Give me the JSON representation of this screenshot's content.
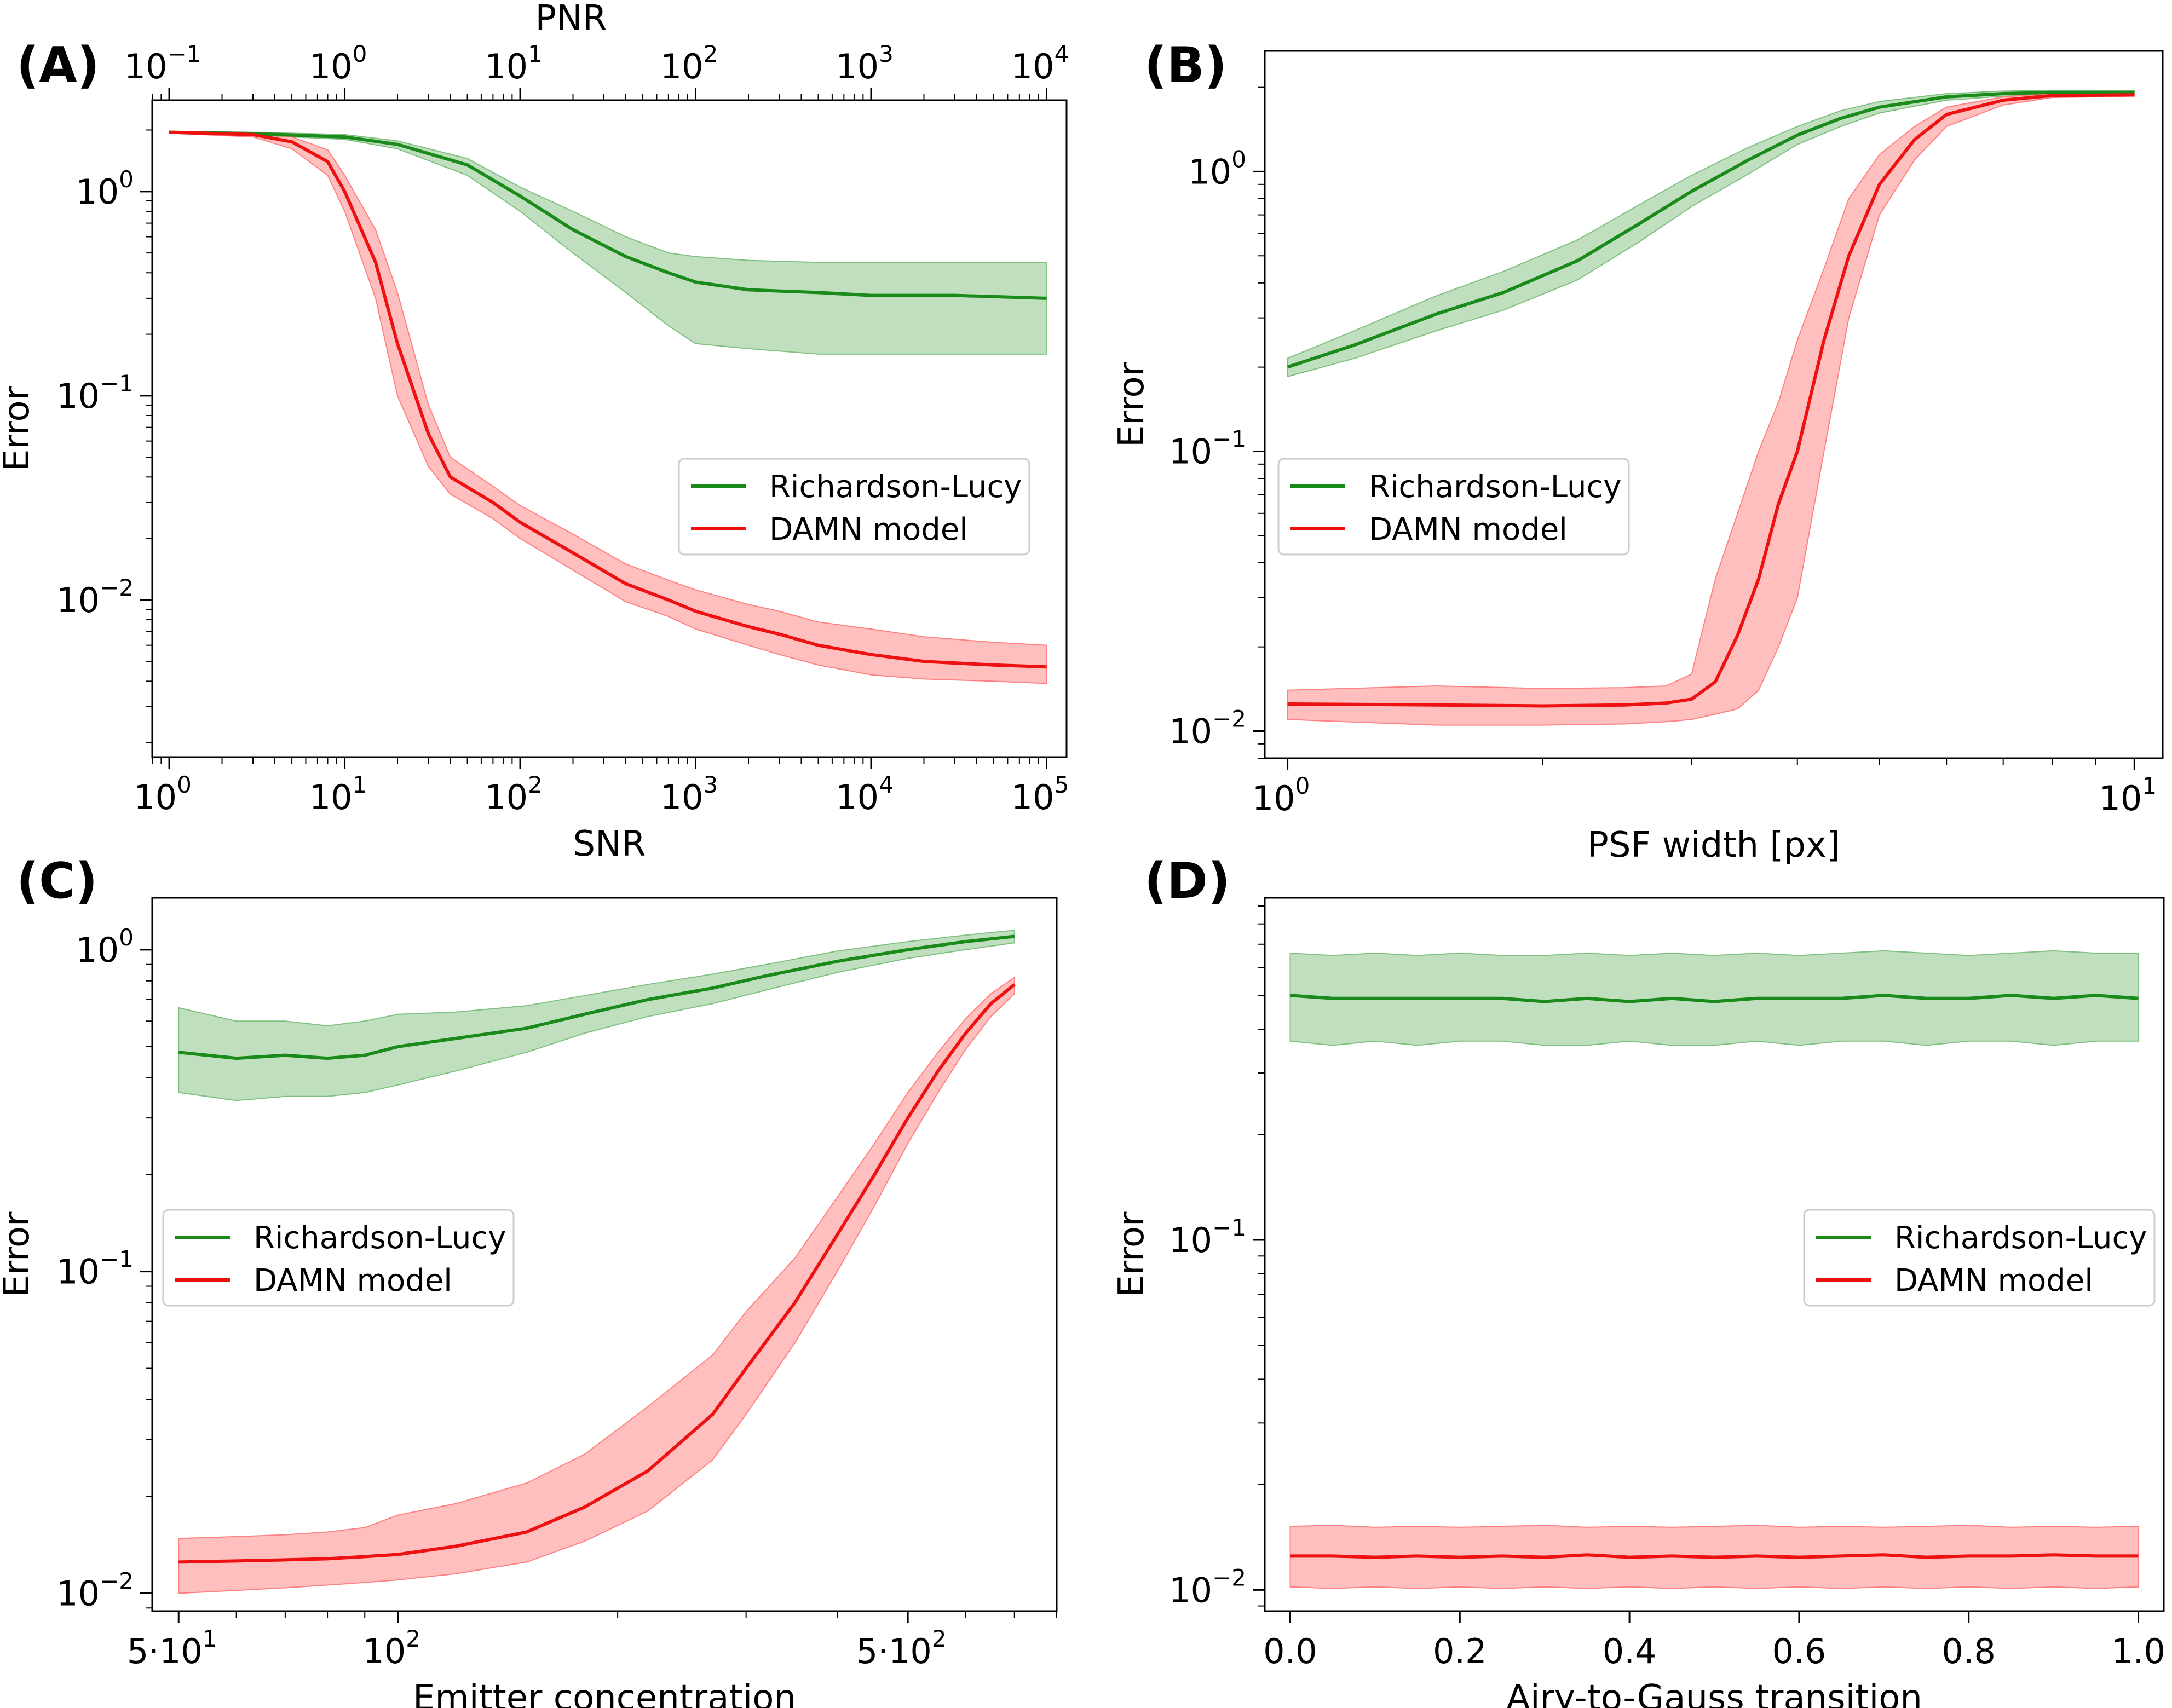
{
  "colors": {
    "richardson_lucy": "#1a8a1a",
    "damn_model": "#ee1111",
    "rl_band": "#7fc07f",
    "damn_band": "#ff8080"
  },
  "chart_data": [
    {
      "panel_label": "(A)",
      "type": "line",
      "xlabel": "SNR",
      "ylabel": "Error",
      "top_xlabel": "PNR",
      "xscale": "log",
      "yscale": "log",
      "xlim": [
        0.8,
        130000
      ],
      "ylim": [
        0.0017,
        2.8
      ],
      "top_xlim": [
        0.08,
        13000
      ],
      "x_ticks": [
        1,
        10,
        100,
        1000,
        10000,
        100000
      ],
      "x_tick_labels": [
        [
          "10",
          "0"
        ],
        [
          "10",
          "1"
        ],
        [
          "10",
          "2"
        ],
        [
          "10",
          "3"
        ],
        [
          "10",
          "4"
        ],
        [
          "10",
          "5"
        ]
      ],
      "top_x_ticks": [
        0.1,
        1,
        10,
        100,
        1000,
        10000
      ],
      "top_x_tick_labels": [
        [
          "10",
          "−1"
        ],
        [
          "10",
          "0"
        ],
        [
          "10",
          "1"
        ],
        [
          "10",
          "2"
        ],
        [
          "10",
          "3"
        ],
        [
          "10",
          "4"
        ]
      ],
      "y_ticks": [
        0.01,
        0.1,
        1
      ],
      "y_tick_labels": [
        [
          "10",
          "−2"
        ],
        [
          "10",
          "−1"
        ],
        [
          "10",
          "0"
        ]
      ],
      "legend_position": "center-right",
      "grid": false,
      "series": [
        {
          "name": "Richardson-Lucy",
          "color_key": "richardson_lucy",
          "x": [
            1,
            3,
            10,
            20,
            50,
            100,
            200,
            400,
            700,
            1000,
            2000,
            5000,
            10000,
            30000,
            100000
          ],
          "y": [
            1.95,
            1.92,
            1.85,
            1.7,
            1.35,
            0.95,
            0.65,
            0.48,
            0.4,
            0.36,
            0.33,
            0.32,
            0.31,
            0.31,
            0.3
          ],
          "lower": [
            1.93,
            1.89,
            1.8,
            1.62,
            1.2,
            0.8,
            0.5,
            0.32,
            0.22,
            0.18,
            0.17,
            0.16,
            0.16,
            0.16,
            0.16
          ],
          "upper": [
            1.97,
            1.95,
            1.9,
            1.77,
            1.45,
            1.05,
            0.8,
            0.6,
            0.5,
            0.48,
            0.46,
            0.45,
            0.45,
            0.45,
            0.45
          ]
        },
        {
          "name": "DAMN model",
          "color_key": "damn_model",
          "x": [
            1,
            3,
            5,
            8,
            10,
            15,
            20,
            30,
            40,
            70,
            100,
            200,
            400,
            700,
            1000,
            2000,
            3000,
            5000,
            10000,
            20000,
            50000,
            100000
          ],
          "y": [
            1.95,
            1.9,
            1.75,
            1.4,
            1.0,
            0.45,
            0.18,
            0.065,
            0.04,
            0.03,
            0.024,
            0.017,
            0.012,
            0.01,
            0.0088,
            0.0074,
            0.0068,
            0.006,
            0.0054,
            0.005,
            0.0048,
            0.0047
          ],
          "lower": [
            1.93,
            1.85,
            1.62,
            1.2,
            0.8,
            0.3,
            0.1,
            0.045,
            0.033,
            0.025,
            0.02,
            0.014,
            0.0098,
            0.0083,
            0.0072,
            0.006,
            0.0054,
            0.0048,
            0.0043,
            0.0041,
            0.004,
            0.0039
          ],
          "upper": [
            1.97,
            1.94,
            1.85,
            1.6,
            1.2,
            0.65,
            0.32,
            0.09,
            0.05,
            0.036,
            0.029,
            0.021,
            0.015,
            0.0125,
            0.0112,
            0.0095,
            0.0088,
            0.0078,
            0.0072,
            0.0066,
            0.0062,
            0.006
          ]
        }
      ]
    },
    {
      "panel_label": "(B)",
      "type": "line",
      "xlabel": "PSF width [px]",
      "ylabel": "Error",
      "xscale": "log",
      "yscale": "log",
      "xlim": [
        0.94,
        10.8
      ],
      "ylim": [
        0.008,
        2.7
      ],
      "x_ticks": [
        1,
        10
      ],
      "x_tick_labels": [
        [
          "10",
          "0"
        ],
        [
          "10",
          "1"
        ]
      ],
      "y_ticks": [
        0.01,
        0.1,
        1
      ],
      "y_tick_labels": [
        [
          "10",
          "−2"
        ],
        [
          "10",
          "−1"
        ],
        [
          "10",
          "0"
        ]
      ],
      "legend_position": "center-left",
      "grid": false,
      "series": [
        {
          "name": "Richardson-Lucy",
          "color_key": "richardson_lucy",
          "x": [
            1,
            1.2,
            1.5,
            1.8,
            2.2,
            2.6,
            3,
            3.5,
            4,
            4.5,
            5,
            6,
            7,
            8,
            10
          ],
          "y": [
            0.2,
            0.24,
            0.31,
            0.37,
            0.48,
            0.65,
            0.85,
            1.1,
            1.35,
            1.55,
            1.7,
            1.85,
            1.9,
            1.92,
            1.92
          ],
          "lower": [
            0.185,
            0.215,
            0.27,
            0.32,
            0.41,
            0.56,
            0.75,
            0.98,
            1.25,
            1.45,
            1.62,
            1.8,
            1.86,
            1.89,
            1.9
          ],
          "upper": [
            0.215,
            0.27,
            0.36,
            0.44,
            0.57,
            0.76,
            0.97,
            1.22,
            1.45,
            1.65,
            1.78,
            1.9,
            1.94,
            1.95,
            1.95
          ]
        },
        {
          "name": "DAMN model",
          "color_key": "damn_model",
          "x": [
            1,
            1.5,
            2,
            2.5,
            2.8,
            3,
            3.2,
            3.4,
            3.6,
            3.8,
            4,
            4.3,
            4.6,
            5,
            5.5,
            6,
            7,
            8,
            10
          ],
          "y": [
            0.0125,
            0.0124,
            0.0123,
            0.0124,
            0.0126,
            0.013,
            0.015,
            0.022,
            0.035,
            0.065,
            0.1,
            0.25,
            0.5,
            0.9,
            1.3,
            1.6,
            1.8,
            1.87,
            1.88
          ],
          "lower": [
            0.011,
            0.0105,
            0.0105,
            0.0106,
            0.0108,
            0.011,
            0.0115,
            0.012,
            0.014,
            0.02,
            0.03,
            0.1,
            0.3,
            0.7,
            1.1,
            1.45,
            1.73,
            1.84,
            1.86
          ],
          "upper": [
            0.014,
            0.0145,
            0.0142,
            0.0143,
            0.0145,
            0.016,
            0.035,
            0.06,
            0.1,
            0.15,
            0.25,
            0.45,
            0.8,
            1.15,
            1.45,
            1.7,
            1.85,
            1.9,
            1.9
          ]
        }
      ]
    },
    {
      "panel_label": "(C)",
      "type": "line",
      "xlabel": "Emitter concentration",
      "ylabel": "Error",
      "xscale": "log",
      "yscale": "log",
      "xlim": [
        46,
        800
      ],
      "ylim": [
        0.0088,
        1.45
      ],
      "x_ticks": [
        50,
        100,
        500
      ],
      "x_tick_labels": [
        [
          "5·10",
          "1"
        ],
        [
          "10",
          "2"
        ],
        [
          "5·10",
          "2"
        ]
      ],
      "y_ticks": [
        0.01,
        0.1,
        1
      ],
      "y_tick_labels": [
        [
          "10",
          "−2"
        ],
        [
          "10",
          "−1"
        ],
        [
          "10",
          "0"
        ]
      ],
      "legend_position": "center-left",
      "grid": false,
      "series": [
        {
          "name": "Richardson-Lucy",
          "color_key": "richardson_lucy",
          "x": [
            50,
            60,
            70,
            80,
            90,
            100,
            120,
            150,
            180,
            220,
            270,
            320,
            400,
            500,
            600,
            700
          ],
          "y": [
            0.48,
            0.46,
            0.47,
            0.46,
            0.47,
            0.5,
            0.53,
            0.57,
            0.63,
            0.7,
            0.76,
            0.83,
            0.92,
            1.0,
            1.06,
            1.1
          ],
          "lower": [
            0.36,
            0.34,
            0.35,
            0.35,
            0.36,
            0.38,
            0.42,
            0.48,
            0.55,
            0.62,
            0.68,
            0.75,
            0.85,
            0.94,
            1.0,
            1.05
          ],
          "upper": [
            0.66,
            0.6,
            0.6,
            0.58,
            0.6,
            0.63,
            0.64,
            0.67,
            0.72,
            0.78,
            0.84,
            0.9,
            0.99,
            1.06,
            1.11,
            1.15
          ]
        },
        {
          "name": "DAMN model",
          "color_key": "damn_model",
          "x": [
            50,
            60,
            70,
            80,
            90,
            100,
            120,
            150,
            180,
            220,
            270,
            300,
            350,
            400,
            450,
            500,
            550,
            600,
            650,
            700
          ],
          "y": [
            0.0125,
            0.0126,
            0.0127,
            0.0128,
            0.013,
            0.0132,
            0.014,
            0.0155,
            0.0185,
            0.024,
            0.036,
            0.05,
            0.08,
            0.13,
            0.2,
            0.3,
            0.42,
            0.55,
            0.68,
            0.78
          ],
          "lower": [
            0.01,
            0.0102,
            0.0104,
            0.0106,
            0.0108,
            0.011,
            0.0115,
            0.0125,
            0.0145,
            0.018,
            0.026,
            0.036,
            0.06,
            0.1,
            0.16,
            0.25,
            0.36,
            0.49,
            0.62,
            0.73
          ],
          "upper": [
            0.0148,
            0.015,
            0.0152,
            0.0155,
            0.016,
            0.0175,
            0.019,
            0.022,
            0.027,
            0.038,
            0.055,
            0.075,
            0.11,
            0.17,
            0.25,
            0.36,
            0.48,
            0.61,
            0.73,
            0.82
          ]
        }
      ]
    },
    {
      "panel_label": "(D)",
      "type": "line",
      "xlabel": "Airy-to-Gauss transition",
      "ylabel": "Error",
      "xscale": "linear",
      "yscale": "log",
      "xlim": [
        -0.03,
        1.03
      ],
      "ylim": [
        0.0087,
        0.95
      ],
      "x_ticks": [
        0.0,
        0.2,
        0.4,
        0.6,
        0.8,
        1.0
      ],
      "x_tick_labels": [
        "0.0",
        "0.2",
        "0.4",
        "0.6",
        "0.8",
        "1.0"
      ],
      "y_ticks": [
        0.01,
        0.1
      ],
      "y_tick_labels": [
        [
          "10",
          "−2"
        ],
        [
          "10",
          "−1"
        ]
      ],
      "legend_position": "center-right",
      "grid": false,
      "series": [
        {
          "name": "Richardson-Lucy",
          "color_key": "richardson_lucy",
          "x": [
            0.0,
            0.05,
            0.1,
            0.15,
            0.2,
            0.25,
            0.3,
            0.35,
            0.4,
            0.45,
            0.5,
            0.55,
            0.6,
            0.65,
            0.7,
            0.75,
            0.8,
            0.85,
            0.9,
            0.95,
            1.0
          ],
          "y": [
            0.5,
            0.49,
            0.49,
            0.49,
            0.49,
            0.49,
            0.48,
            0.49,
            0.48,
            0.49,
            0.48,
            0.49,
            0.49,
            0.49,
            0.5,
            0.49,
            0.49,
            0.5,
            0.49,
            0.5,
            0.49
          ],
          "lower": [
            0.37,
            0.36,
            0.37,
            0.36,
            0.37,
            0.37,
            0.36,
            0.36,
            0.37,
            0.36,
            0.36,
            0.37,
            0.36,
            0.37,
            0.37,
            0.36,
            0.37,
            0.37,
            0.36,
            0.37,
            0.37
          ],
          "upper": [
            0.66,
            0.65,
            0.66,
            0.65,
            0.66,
            0.65,
            0.65,
            0.66,
            0.65,
            0.66,
            0.65,
            0.66,
            0.65,
            0.66,
            0.67,
            0.66,
            0.65,
            0.66,
            0.67,
            0.66,
            0.66
          ]
        },
        {
          "name": "DAMN model",
          "color_key": "damn_model",
          "x": [
            0.0,
            0.05,
            0.1,
            0.15,
            0.2,
            0.25,
            0.3,
            0.35,
            0.4,
            0.45,
            0.5,
            0.55,
            0.6,
            0.65,
            0.7,
            0.75,
            0.8,
            0.85,
            0.9,
            0.95,
            1.0
          ],
          "y": [
            0.0125,
            0.0125,
            0.0124,
            0.0125,
            0.0124,
            0.0125,
            0.0124,
            0.0126,
            0.0124,
            0.0125,
            0.0124,
            0.0125,
            0.0124,
            0.0125,
            0.0126,
            0.0124,
            0.0125,
            0.0125,
            0.0126,
            0.0125,
            0.0125
          ],
          "lower": [
            0.0102,
            0.0101,
            0.0102,
            0.0101,
            0.0102,
            0.0101,
            0.0102,
            0.0101,
            0.0102,
            0.0101,
            0.0102,
            0.0101,
            0.0102,
            0.0101,
            0.0102,
            0.0101,
            0.0102,
            0.0101,
            0.0102,
            0.0101,
            0.0102
          ],
          "upper": [
            0.0152,
            0.0153,
            0.0151,
            0.0152,
            0.0151,
            0.0152,
            0.0153,
            0.0151,
            0.0152,
            0.0151,
            0.0152,
            0.0153,
            0.0151,
            0.0152,
            0.0151,
            0.0152,
            0.0153,
            0.0151,
            0.0152,
            0.0151,
            0.0152
          ]
        }
      ]
    }
  ]
}
